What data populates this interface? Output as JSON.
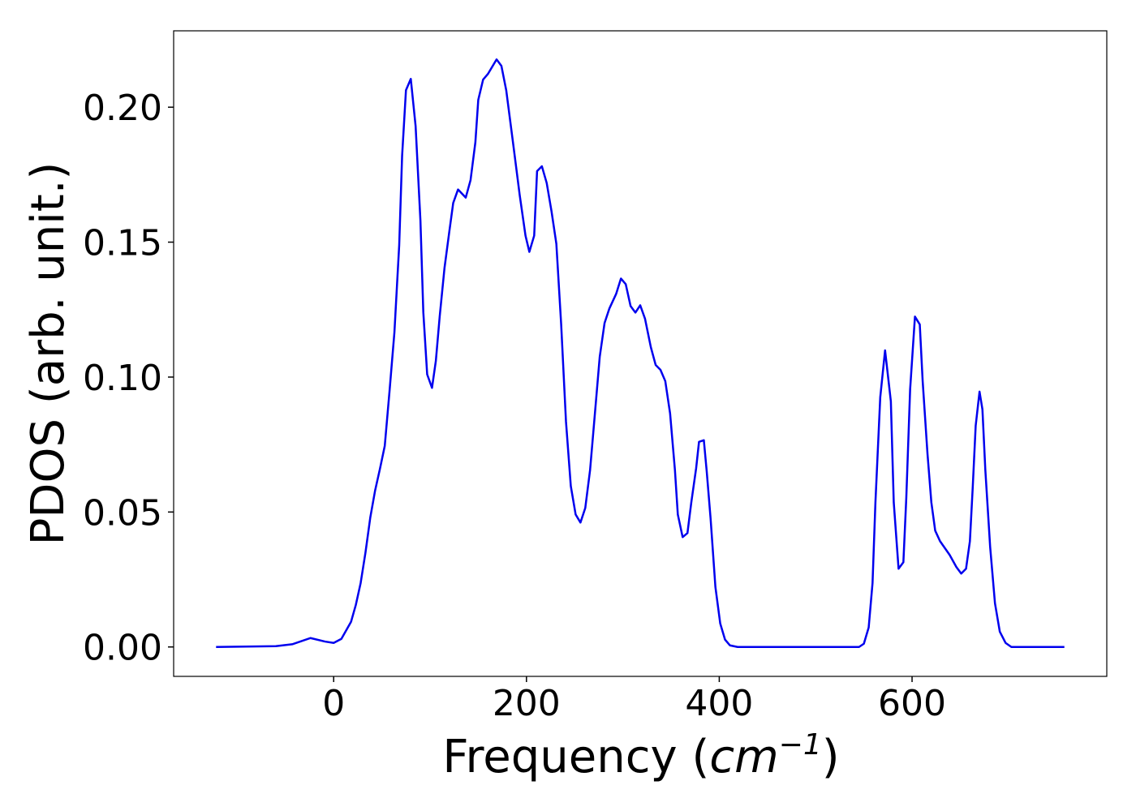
{
  "chart_data": {
    "type": "line",
    "xlabel": [
      "Frequency (",
      "cm",
      "−1",
      ")"
    ],
    "ylabel": "PDOS (arb. unit.)",
    "xlim": [
      -166,
      802
    ],
    "ylim": [
      -0.0109,
      0.2283
    ],
    "xticks": [
      0,
      200,
      400,
      600
    ],
    "yticks": [
      {
        "value": 0,
        "label": "0.00"
      },
      {
        "value": 0.05,
        "label": "0.05"
      },
      {
        "value": 0.1,
        "label": "0.10"
      },
      {
        "value": 0.15,
        "label": "0.15"
      },
      {
        "value": 0.2,
        "label": "0.20"
      }
    ],
    "series": [
      {
        "color": "#0000ee",
        "x": [
          -122,
          -60,
          -43,
          -24,
          -9,
          0,
          8,
          18,
          23,
          28,
          33,
          38,
          43,
          48,
          53,
          58,
          63,
          68,
          71,
          75,
          80,
          85,
          90,
          93,
          97,
          102,
          106,
          110,
          115,
          120,
          124,
          129,
          137,
          142,
          147,
          150,
          155,
          160,
          169,
          174,
          179,
          186,
          193,
          199,
          203,
          208,
          211,
          216,
          221,
          226,
          231,
          236,
          241,
          246,
          251,
          256,
          261,
          266,
          271,
          276,
          281,
          286,
          293,
          298,
          303,
          308,
          313,
          318,
          323,
          329,
          334,
          339,
          344,
          349,
          354,
          357,
          362,
          367,
          371,
          376,
          379,
          384,
          387,
          391,
          396,
          401,
          406,
          411,
          419,
          545,
          550,
          555,
          559,
          562,
          567,
          572,
          578,
          581,
          586,
          591,
          594,
          598,
          603,
          608,
          611,
          616,
          620,
          624,
          629,
          639,
          646,
          651,
          656,
          660,
          663,
          666,
          670,
          673,
          676,
          681,
          686,
          691,
          697,
          703,
          758
        ],
        "values": [
          0,
          0.0003,
          0.001,
          0.0033,
          0.002,
          0.0015,
          0.003,
          0.0093,
          0.0156,
          0.0237,
          0.035,
          0.048,
          0.058,
          0.066,
          0.0745,
          0.095,
          0.1165,
          0.149,
          0.182,
          0.2063,
          0.2105,
          0.193,
          0.158,
          0.124,
          0.101,
          0.096,
          0.106,
          0.1225,
          0.1405,
          0.154,
          0.1645,
          0.1695,
          0.1665,
          0.173,
          0.187,
          0.2027,
          0.2102,
          0.2123,
          0.2177,
          0.2153,
          0.2063,
          0.187,
          0.1674,
          0.1524,
          0.1464,
          0.1524,
          0.1763,
          0.1781,
          0.1719,
          0.1614,
          0.1494,
          0.1195,
          0.0835,
          0.0596,
          0.0491,
          0.0461,
          0.0515,
          0.0656,
          0.0865,
          0.1075,
          0.12,
          0.1254,
          0.1308,
          0.1365,
          0.1344,
          0.1263,
          0.1239,
          0.1266,
          0.1216,
          0.1111,
          0.1045,
          0.1027,
          0.0985,
          0.0865,
          0.0656,
          0.0491,
          0.0407,
          0.0422,
          0.0536,
          0.0662,
          0.076,
          0.0766,
          0.065,
          0.0476,
          0.0222,
          0.0087,
          0.0027,
          0.0006,
          0,
          0,
          0.0012,
          0.0072,
          0.0237,
          0.0536,
          0.0925,
          0.1099,
          0.091,
          0.0536,
          0.029,
          0.0314,
          0.0551,
          0.0955,
          0.1224,
          0.1195,
          0.0985,
          0.0716,
          0.0536,
          0.0431,
          0.0392,
          0.0341,
          0.0296,
          0.0272,
          0.029,
          0.0392,
          0.0596,
          0.082,
          0.0946,
          0.088,
          0.0656,
          0.0371,
          0.0162,
          0.0057,
          0.0015,
          0,
          0
        ]
      }
    ]
  }
}
